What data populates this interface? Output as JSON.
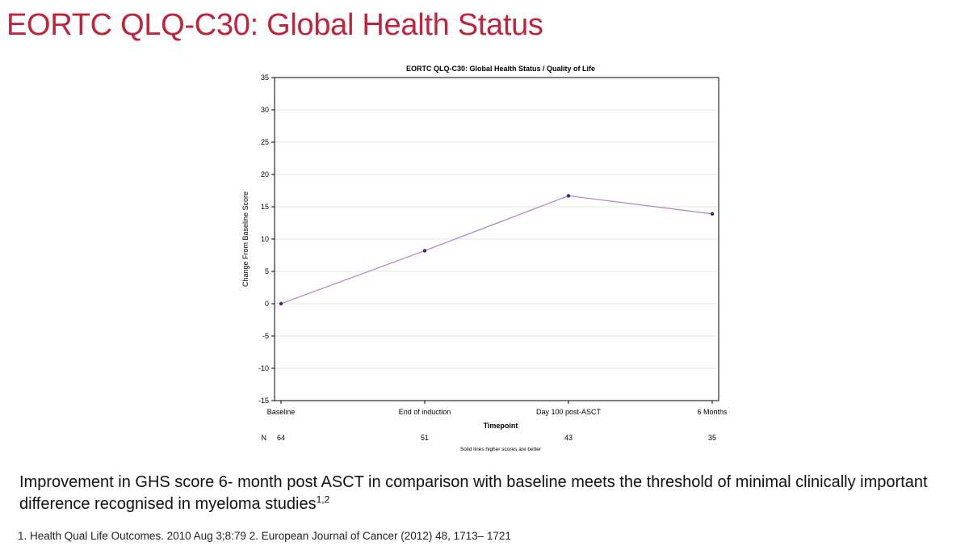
{
  "slide": {
    "title": "EORTC QLQ-C30: Global Health Status",
    "summary_text": "Improvement in GHS score  6- month post ASCT  in comparison with baseline  meets the threshold of minimal clinically important difference recognised in myeloma studies",
    "summary_superscript": "1,2",
    "references": "1. Health Qual Life Outcomes. 2010 Aug 3;8:79 2. European Journal of Cancer (2012) 48, 1713– 1721"
  },
  "chart_data": {
    "type": "line",
    "title": "EORTC QLQ-C30: Global Health Status / Quality of Life",
    "xlabel": "Timepoint",
    "ylabel": "Change From Baseline Score",
    "categories": [
      "Baseline",
      "End of induction",
      "Day 100 post-ASCT",
      "6 Months"
    ],
    "series": [
      {
        "values": [
          0,
          8.2,
          16.7,
          13.9
        ]
      }
    ],
    "ylim": [
      -15,
      35
    ],
    "yticks": [
      -15,
      -10,
      -5,
      0,
      5,
      10,
      15,
      20,
      25,
      30,
      35
    ],
    "grid": true,
    "n_label": "N",
    "n_values": [
      "64",
      "51",
      "43",
      "35"
    ],
    "footnote": "Solid lines higher scores are better",
    "colors": {
      "line": "#b58acb",
      "marker": "#4b1f6f",
      "grid": "#e3e3e3",
      "frame": "#000000"
    }
  }
}
